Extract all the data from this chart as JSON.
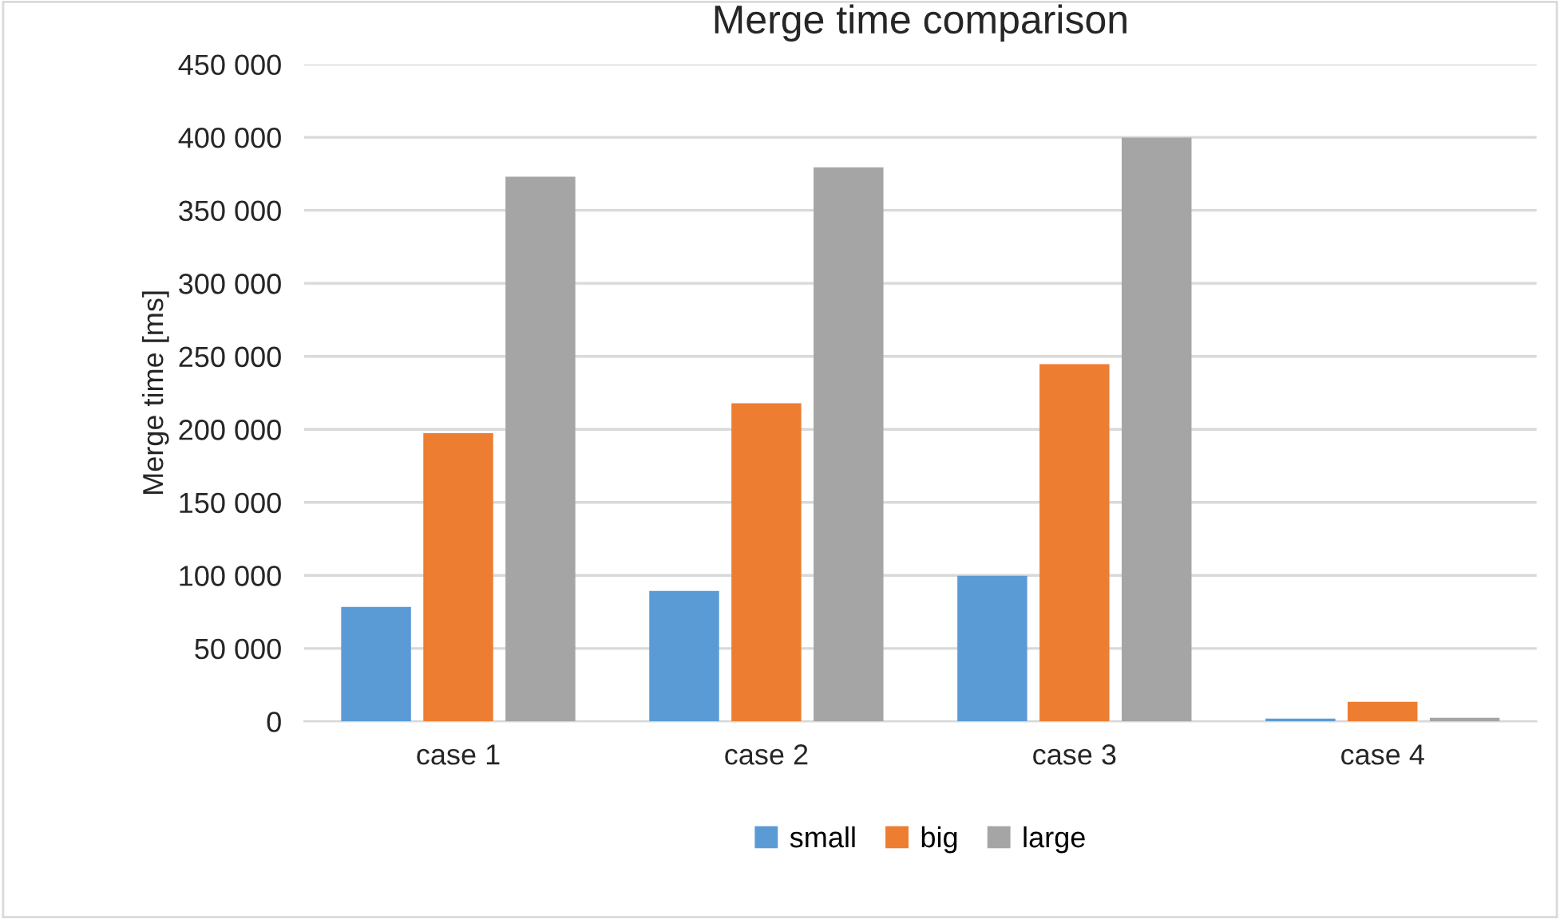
{
  "chart_data": {
    "type": "bar",
    "title": "Merge time comparison",
    "ylabel": "Merge time [ms]",
    "categories": [
      "case 1",
      "case 2",
      "case 3",
      "case 4"
    ],
    "series": [
      {
        "name": "small",
        "color": "#5b9bd5",
        "values": [
          78500,
          89300,
          99700,
          2000
        ]
      },
      {
        "name": "big",
        "color": "#ed7d31",
        "values": [
          197400,
          217900,
          244600,
          13400
        ]
      },
      {
        "name": "large",
        "color": "#a5a5a5",
        "values": [
          373100,
          379400,
          399800,
          2500
        ]
      }
    ],
    "ylim": [
      0,
      450000
    ],
    "yticks": [
      {
        "value": 0,
        "label": "0"
      },
      {
        "value": 50000,
        "label": "50 000"
      },
      {
        "value": 100000,
        "label": "100 000"
      },
      {
        "value": 150000,
        "label": "150 000"
      },
      {
        "value": 200000,
        "label": "200 000"
      },
      {
        "value": 250000,
        "label": "250 000"
      },
      {
        "value": 300000,
        "label": "300 000"
      },
      {
        "value": 350000,
        "label": "350 000"
      },
      {
        "value": 400000,
        "label": "400 000"
      },
      {
        "value": 450000,
        "label": "450 000"
      }
    ],
    "grid": "y",
    "legend": "bottom"
  }
}
